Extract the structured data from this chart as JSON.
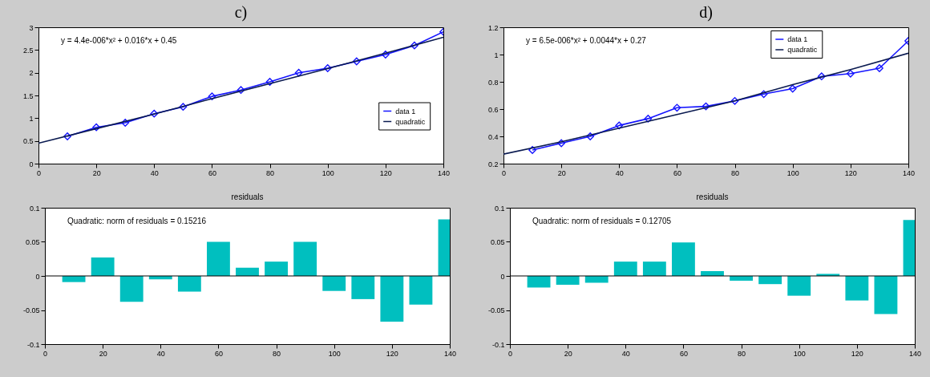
{
  "chart_data": [
    {
      "type": "line",
      "title": "c)",
      "x": [
        10,
        20,
        30,
        40,
        50,
        60,
        70,
        80,
        90,
        100,
        110,
        120,
        130,
        140
      ],
      "series": [
        {
          "name": "data 1",
          "color": "#1414ff",
          "marker": "diamond",
          "values": [
            0.6,
            0.8,
            0.9,
            1.1,
            1.25,
            1.48,
            1.62,
            1.8,
            2.0,
            2.1,
            2.25,
            2.4,
            2.6,
            2.9
          ]
        },
        {
          "name": "quadratic",
          "color": "#0a1a50",
          "x": [
            0,
            20,
            40,
            60,
            80,
            100,
            120,
            140
          ],
          "values": [
            0.45,
            0.77,
            1.09,
            1.43,
            1.76,
            2.09,
            2.43,
            2.78
          ]
        }
      ],
      "xlim": [
        0,
        140
      ],
      "xticks": [
        0,
        20,
        40,
        60,
        80,
        100,
        120,
        140
      ],
      "ylim": [
        0,
        3
      ],
      "yticks": [
        0,
        0.5,
        1,
        1.5,
        2,
        2.5,
        3
      ],
      "annotations": [
        "y = 4.4e-006*x² + 0.016*x + 0.45"
      ],
      "legend": "right"
    },
    {
      "type": "line",
      "title": "d)",
      "x": [
        10,
        20,
        30,
        40,
        50,
        60,
        70,
        80,
        90,
        100,
        110,
        120,
        130,
        140
      ],
      "series": [
        {
          "name": "data 1",
          "color": "#1414ff",
          "marker": "diamond",
          "values": [
            0.3,
            0.35,
            0.4,
            0.48,
            0.53,
            0.61,
            0.62,
            0.66,
            0.71,
            0.75,
            0.84,
            0.86,
            0.9,
            1.1
          ]
        },
        {
          "name": "quadratic",
          "color": "#0a1a50",
          "x": [
            0,
            20,
            40,
            60,
            80,
            100,
            120,
            140
          ],
          "values": [
            0.27,
            0.36,
            0.46,
            0.56,
            0.66,
            0.78,
            0.89,
            1.01
          ]
        }
      ],
      "xlim": [
        0,
        140
      ],
      "xticks": [
        0,
        20,
        40,
        60,
        80,
        100,
        120,
        140
      ],
      "ylim": [
        0.2,
        1.2
      ],
      "yticks": [
        0.2,
        0.4,
        0.6,
        0.8,
        1,
        1.2
      ],
      "annotations": [
        "y = 6.5e-006*x² + 0.0044*x + 0.27"
      ],
      "legend": "top right"
    },
    {
      "type": "bar",
      "title": "residuals",
      "x": [
        10,
        20,
        30,
        40,
        50,
        60,
        70,
        80,
        90,
        100,
        110,
        120,
        130,
        140
      ],
      "color": "#00bfbf",
      "values": [
        -0.009,
        0.027,
        -0.038,
        -0.005,
        -0.023,
        0.05,
        0.012,
        0.021,
        0.05,
        -0.022,
        -0.034,
        -0.067,
        -0.042,
        0.083
      ],
      "xlim": [
        0,
        140
      ],
      "xticks": [
        0,
        20,
        40,
        60,
        80,
        100,
        120,
        140
      ],
      "ylim": [
        -0.1,
        0.1
      ],
      "yticks": [
        -0.1,
        -0.05,
        0,
        0.05,
        0.1
      ],
      "ref_lines": [
        {
          "axis": "y",
          "value": 0,
          "color": "#000000"
        }
      ],
      "annotations": [
        "Quadratic: norm of residuals = 0.15216"
      ]
    },
    {
      "type": "bar",
      "title": "residuals",
      "x": [
        10,
        20,
        30,
        40,
        50,
        60,
        70,
        80,
        90,
        100,
        110,
        120,
        130,
        140
      ],
      "color": "#00bfbf",
      "values": [
        -0.017,
        -0.013,
        -0.01,
        0.021,
        0.021,
        0.049,
        0.007,
        -0.007,
        -0.012,
        -0.029,
        0.003,
        -0.036,
        -0.056,
        0.082
      ],
      "xlim": [
        0,
        140
      ],
      "xticks": [
        0,
        20,
        40,
        60,
        80,
        100,
        120,
        140
      ],
      "ylim": [
        -0.1,
        0.1
      ],
      "yticks": [
        -0.1,
        -0.05,
        0,
        0.05,
        0.1
      ],
      "ref_lines": [
        {
          "axis": "y",
          "value": 0,
          "color": "#000000"
        }
      ],
      "annotations": [
        "Quadratic: norm of residuals = 0.12705"
      ]
    }
  ]
}
